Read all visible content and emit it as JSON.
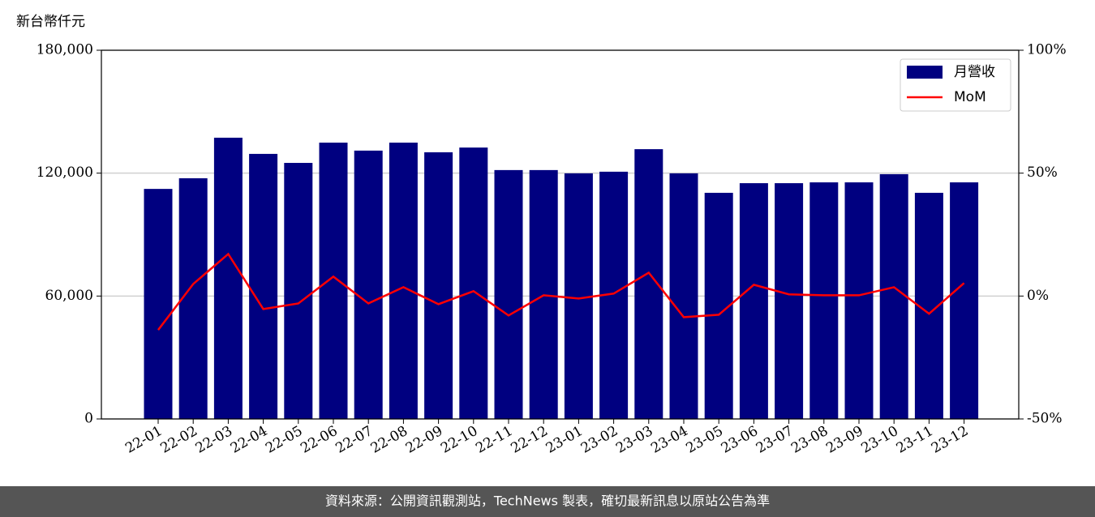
{
  "chart_data": {
    "type": "bar",
    "y_label": "新台幣仟元",
    "footer": "資料來源：公開資訊觀測站，TechNews 製表，確切最新訊息以原站公告為準",
    "categories": [
      "22-01",
      "22-02",
      "22-03",
      "22-04",
      "22-05",
      "22-06",
      "22-07",
      "22-08",
      "22-09",
      "22-10",
      "22-11",
      "22-12",
      "23-01",
      "23-02",
      "23-03",
      "23-04",
      "23-05",
      "23-06",
      "23-07",
      "23-08",
      "23-09",
      "23-10",
      "23-11",
      "23-12"
    ],
    "series": [
      {
        "name": "月營收",
        "type": "bar",
        "color": "#000080",
        "values": [
          112300,
          117500,
          137300,
          129400,
          125000,
          134900,
          131000,
          134900,
          130200,
          132500,
          121500,
          121500,
          119900,
          120700,
          131700,
          119900,
          110400,
          115100,
          115100,
          115500,
          115500,
          119500,
          110400,
          115500
        ]
      },
      {
        "name": "MoM",
        "type": "line",
        "color": "#ff0000",
        "axis": "y2",
        "values": [
          -13.8,
          4.9,
          17.1,
          -5.3,
          -3.0,
          7.9,
          -3.0,
          3.6,
          -3.3,
          2.0,
          -7.9,
          0.3,
          -1.0,
          1.0,
          9.5,
          -8.6,
          -7.6,
          4.6,
          0.7,
          0.3,
          0.3,
          3.6,
          -7.2,
          5.3
        ]
      }
    ],
    "ylim": [
      0,
      180000
    ],
    "yticks": [
      0,
      {
        "value": 60000,
        "label": "60,000"
      },
      {
        "value": 120000,
        "label": "120,000"
      },
      {
        "value": 180000,
        "label": "180,000"
      }
    ],
    "y2lim": [
      -50,
      100
    ],
    "y2ticks": [
      {
        "value": -50,
        "label": "-50%"
      },
      {
        "value": 0,
        "label": "0%"
      },
      {
        "value": 50,
        "label": "50%"
      },
      {
        "value": 100,
        "label": "100%"
      }
    ],
    "grid": true,
    "legend": "upper right"
  }
}
